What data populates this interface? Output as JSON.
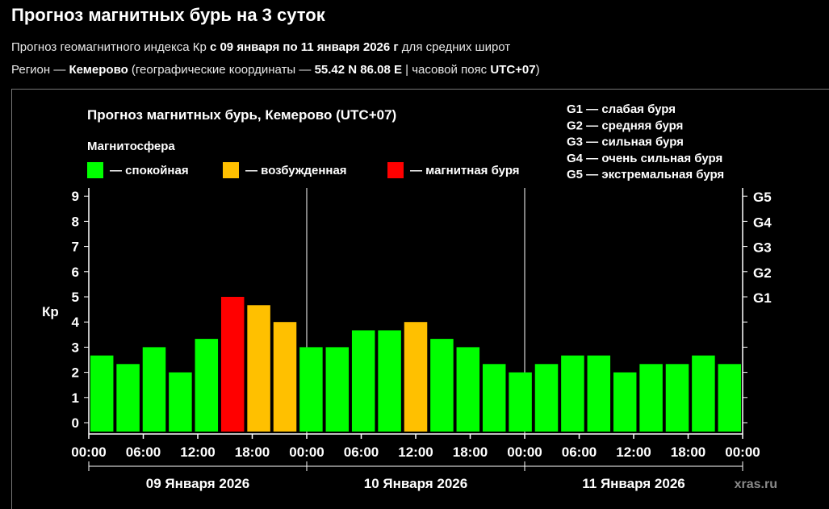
{
  "page": {
    "title": "Прогноз магнитных бурь на 3 суток",
    "line1": {
      "pre": "Прогноз геомагнитного индекса Кр ",
      "bold": "с 09 января по 11 января 2026 г",
      "post": " для средних широт"
    },
    "line2": {
      "pre": "Регион — ",
      "region": "Кемерово",
      "mid": " (географические координаты — ",
      "coords": "55.42 N 86.08 E",
      "mid2": " | часовой пояс ",
      "tz": "UTC+07",
      "post": ")"
    }
  },
  "chart_data": {
    "type": "bar",
    "title": "Прогноз магнитных бурь, Кемерово (UTC+07)",
    "legend_title": "Магнитосфера",
    "legend": [
      {
        "label": "— спокойная",
        "color": "#00ff00"
      },
      {
        "label": "— возбужденная",
        "color": "#ffc000"
      },
      {
        "label": "— магнитная буря",
        "color": "#ff0000"
      }
    ],
    "g_legend": [
      "G1 — слабая буря",
      "G2 — средняя буря",
      "G3 — сильная буря",
      "G4 — очень сильная буря",
      "G5 — экстремальная буря"
    ],
    "ylabel": "Кр",
    "ylim": [
      0,
      9
    ],
    "yticks": [
      "0",
      "1",
      "2",
      "3",
      "4",
      "5",
      "6",
      "7",
      "8",
      "9"
    ],
    "g_ticks": [
      {
        "kp": 5,
        "label": "G1"
      },
      {
        "kp": 6,
        "label": "G2"
      },
      {
        "kp": 7,
        "label": "G3"
      },
      {
        "kp": 8,
        "label": "G4"
      },
      {
        "kp": 9,
        "label": "G5"
      }
    ],
    "xtick_labels": [
      "00:00",
      "06:00",
      "12:00",
      "18:00",
      "00:00",
      "06:00",
      "12:00",
      "18:00",
      "00:00",
      "06:00",
      "12:00",
      "18:00",
      "00:00"
    ],
    "days": [
      "09 Января 2026",
      "10 Января 2026",
      "11 Января 2026"
    ],
    "values": [
      2.67,
      2.33,
      3.0,
      2.0,
      3.33,
      5.0,
      4.67,
      4.0,
      3.0,
      3.0,
      3.67,
      3.67,
      4.0,
      3.33,
      3.0,
      2.33,
      2.0,
      2.33,
      2.67,
      2.67,
      2.0,
      2.33,
      2.33,
      2.67,
      2.33
    ],
    "levels": [
      "calm",
      "calm",
      "calm",
      "calm",
      "calm",
      "storm",
      "active",
      "active",
      "calm",
      "calm",
      "calm",
      "calm",
      "active",
      "calm",
      "calm",
      "calm",
      "calm",
      "calm",
      "calm",
      "calm",
      "calm",
      "calm",
      "calm",
      "calm",
      "calm"
    ],
    "level_colors": {
      "calm": "#00ff00",
      "active": "#ffc000",
      "storm": "#ff0000"
    },
    "watermark": "xras.ru"
  }
}
